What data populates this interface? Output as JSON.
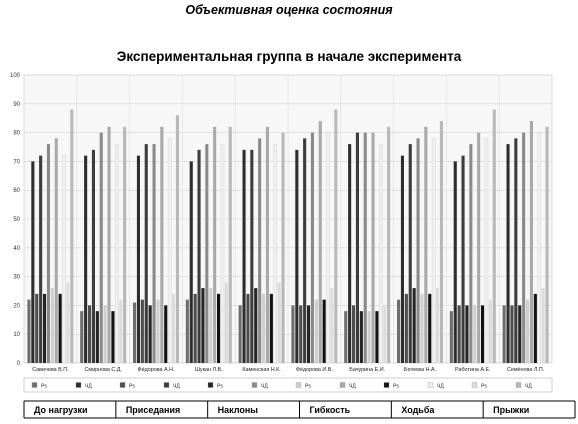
{
  "heading": "Объективная оценка состояния",
  "chart_data": {
    "type": "bar",
    "title": "Экспериментальная группа в начале эксперимента",
    "ylim": [
      0,
      100
    ],
    "yticks": [
      0,
      10,
      20,
      30,
      40,
      50,
      60,
      70,
      80,
      90,
      100
    ],
    "grid": true,
    "categories": [
      "Савичева В.П.",
      "Смирнова С.Д.",
      "Фёдорова А.Н.",
      "Шукан Л.В.",
      "Каменская Н.К.",
      "Фёдорова И.В.",
      "Бачурина Е.И.",
      "Бегеева Н.А.",
      "Работина А.Е.",
      "Семёнова Л.П."
    ],
    "series": [
      {
        "name": "Рs",
        "exercise": "До нагрузки",
        "color": "#6e6e6e",
        "values": [
          22,
          18,
          21,
          22,
          20,
          20,
          18,
          22,
          18,
          20
        ]
      },
      {
        "name": "ЧД",
        "exercise": "До нагрузки",
        "color": "#2d2d2d",
        "values": [
          70,
          72,
          72,
          70,
          74,
          74,
          76,
          72,
          70,
          76
        ]
      },
      {
        "name": "Рs",
        "exercise": "Приседания",
        "color": "#4d4d4d",
        "values": [
          24,
          20,
          22,
          24,
          24,
          20,
          20,
          24,
          20,
          20
        ]
      },
      {
        "name": "ЧД",
        "exercise": "Приседания",
        "color": "#3c3c3c",
        "values": [
          72,
          74,
          76,
          74,
          74,
          78,
          80,
          76,
          72,
          78
        ]
      },
      {
        "name": "Рs",
        "exercise": "Наклоны",
        "color": "#242424",
        "values": [
          24,
          18,
          20,
          26,
          26,
          20,
          18,
          26,
          20,
          20
        ]
      },
      {
        "name": "ЧД",
        "exercise": "Наклоны",
        "color": "#8a8a8a",
        "values": [
          76,
          80,
          76,
          76,
          78,
          80,
          80,
          78,
          76,
          80
        ]
      },
      {
        "name": "Рs",
        "exercise": "Гибкость",
        "color": "#cfcfcf",
        "values": [
          26,
          20,
          22,
          26,
          24,
          22,
          18,
          24,
          20,
          22
        ]
      },
      {
        "name": "ЧД",
        "exercise": "Гибкость",
        "color": "#a9a9a9",
        "values": [
          78,
          82,
          82,
          82,
          82,
          84,
          80,
          82,
          80,
          84
        ]
      },
      {
        "name": "Рs",
        "exercise": "Ходьба",
        "color": "#121212",
        "values": [
          24,
          18,
          20,
          24,
          24,
          22,
          18,
          24,
          20,
          24
        ]
      },
      {
        "name": "ЧД",
        "exercise": "Ходьба",
        "color": "#f0f0f0",
        "values": [
          72,
          76,
          78,
          76,
          76,
          80,
          76,
          78,
          78,
          80
        ]
      },
      {
        "name": "Рs",
        "exercise": "Прыжки",
        "color": "#dcdcdc",
        "values": [
          28,
          22,
          24,
          28,
          28,
          26,
          20,
          26,
          22,
          26
        ]
      },
      {
        "name": "ЧД",
        "exercise": "Прыжки",
        "color": "#b8b8b8",
        "values": [
          88,
          82,
          86,
          82,
          80,
          88,
          82,
          84,
          88,
          82
        ]
      }
    ],
    "legend": [
      {
        "label": "Рs",
        "color": "#6e6e6e"
      },
      {
        "label": "ЧД",
        "color": "#2d2d2d"
      },
      {
        "label": "Рs",
        "color": "#4d4d4d"
      },
      {
        "label": "ЧД",
        "color": "#3c3c3c"
      },
      {
        "label": "Рs",
        "color": "#242424"
      },
      {
        "label": "ЧД",
        "color": "#8a8a8a"
      },
      {
        "label": "Рs",
        "color": "#cfcfcf"
      },
      {
        "label": "ЧД",
        "color": "#a9a9a9"
      },
      {
        "label": "Рs",
        "color": "#121212"
      },
      {
        "label": "ЧД",
        "color": "#f0f0f0"
      },
      {
        "label": "Рs",
        "color": "#dcdcdc"
      },
      {
        "label": "ЧД",
        "color": "#b8b8b8"
      }
    ],
    "groups": [
      "До нагрузки",
      "Приседания",
      "Наклоны",
      "Гибкость",
      "Ходьба",
      "Прыжки"
    ]
  }
}
